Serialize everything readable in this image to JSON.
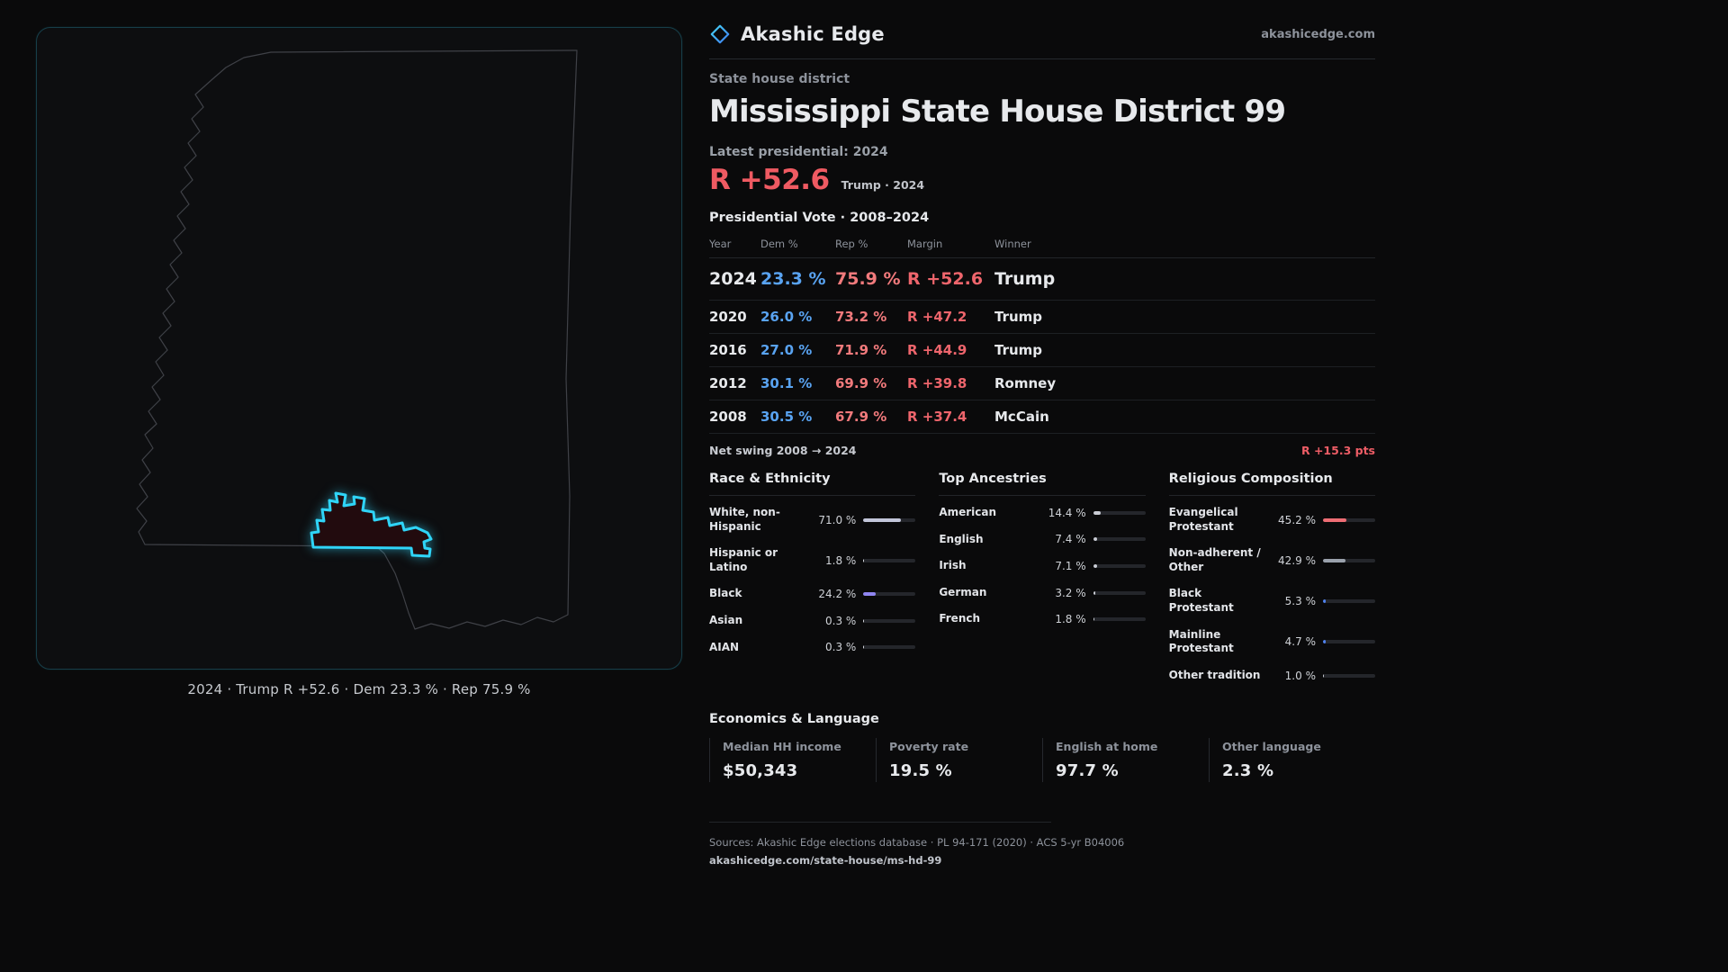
{
  "brand": {
    "name": "Akashic Edge",
    "domain": "akashicedge.com"
  },
  "map": {
    "caption": "2024 · Trump R +52.6 · Dem 23.3 % · Rep 75.9 %"
  },
  "header": {
    "kicker": "State house district",
    "title": "Mississippi State House District 99",
    "latest_label": "Latest presidential: 2024",
    "margin_big": "R +52.6",
    "margin_context": "Trump · 2024"
  },
  "table": {
    "title": "Presidential Vote · 2008–2024",
    "columns": [
      "Year",
      "Dem %",
      "Rep %",
      "Margin",
      "Winner"
    ],
    "rows": [
      {
        "year": "2024",
        "dem": "23.3 %",
        "rep": "75.9 %",
        "margin": "R +52.6",
        "winner": "Trump"
      },
      {
        "year": "2020",
        "dem": "26.0 %",
        "rep": "73.2 %",
        "margin": "R +47.2",
        "winner": "Trump"
      },
      {
        "year": "2016",
        "dem": "27.0 %",
        "rep": "71.9 %",
        "margin": "R +44.9",
        "winner": "Trump"
      },
      {
        "year": "2012",
        "dem": "30.1 %",
        "rep": "69.9 %",
        "margin": "R +39.8",
        "winner": "Romney"
      },
      {
        "year": "2008",
        "dem": "30.5 %",
        "rep": "67.9 %",
        "margin": "R +37.4",
        "winner": "McCain"
      }
    ],
    "net_swing_label": "Net swing 2008 → 2024",
    "net_swing_value": "R +15.3 pts"
  },
  "demographics": {
    "race": {
      "title": "Race & Ethnicity",
      "items": [
        {
          "label": "White, non-Hispanic",
          "value": "71.0 %",
          "pct": 71.0,
          "color": "#c2c6da"
        },
        {
          "label": "Hispanic or Latino",
          "value": "1.8 %",
          "pct": 1.8,
          "color": "#d9dbe2"
        },
        {
          "label": "Black",
          "value": "24.2 %",
          "pct": 24.2,
          "color": "#8f85f0"
        },
        {
          "label": "Asian",
          "value": "0.3 %",
          "pct": 0.3,
          "color": "#d9dbe2"
        },
        {
          "label": "AIAN",
          "value": "0.3 %",
          "pct": 0.3,
          "color": "#d9dbe2"
        }
      ]
    },
    "ancestries": {
      "title": "Top Ancestries",
      "items": [
        {
          "label": "American",
          "value": "14.4 %",
          "pct": 14.4,
          "color": "#c9ccd4"
        },
        {
          "label": "English",
          "value": "7.4 %",
          "pct": 7.4,
          "color": "#c9ccd4"
        },
        {
          "label": "Irish",
          "value": "7.1 %",
          "pct": 7.1,
          "color": "#c9ccd4"
        },
        {
          "label": "German",
          "value": "3.2 %",
          "pct": 3.2,
          "color": "#c9ccd4"
        },
        {
          "label": "French",
          "value": "1.8 %",
          "pct": 1.8,
          "color": "#c9ccd4"
        }
      ]
    },
    "religion": {
      "title": "Religious Composition",
      "items": [
        {
          "label": "Evangelical Protestant",
          "value": "45.2 %",
          "pct": 45.2,
          "color": "#ee6d74"
        },
        {
          "label": "Non-adherent / Other",
          "value": "42.9 %",
          "pct": 42.9,
          "color": "#9aa1ac"
        },
        {
          "label": "Black Protestant",
          "value": "5.3 %",
          "pct": 5.3,
          "color": "#4f82ee"
        },
        {
          "label": "Mainline Protestant",
          "value": "4.7 %",
          "pct": 4.7,
          "color": "#4f82ee"
        },
        {
          "label": "Other tradition",
          "value": "1.0 %",
          "pct": 1.0,
          "color": "#c9ccd4"
        }
      ]
    }
  },
  "economics": {
    "title": "Economics & Language",
    "stats": [
      {
        "label": "Median HH income",
        "value": "$50,343"
      },
      {
        "label": "Poverty rate",
        "value": "19.5 %"
      },
      {
        "label": "English at home",
        "value": "97.7 %"
      },
      {
        "label": "Other language",
        "value": "2.3 %"
      }
    ]
  },
  "footer": {
    "sources": "Sources: Akashic Edge elections database · PL 94-171 (2020) · ACS 5-yr B04006",
    "permalink": "akashicedge.com/state-house/ms-hd-99"
  }
}
